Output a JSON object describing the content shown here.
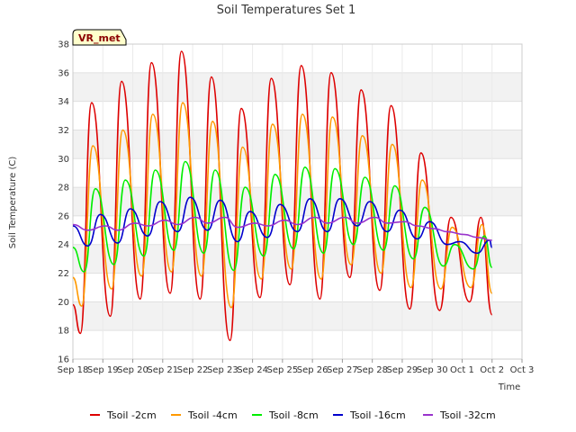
{
  "chart_data": {
    "type": "line",
    "title": "Soil Temperatures Set 1",
    "xlabel": "Time",
    "ylabel": "Soil Temperature (C)",
    "badge": "VR_met",
    "ylim": [
      16,
      38
    ],
    "yticks": [
      16,
      18,
      20,
      22,
      24,
      26,
      28,
      30,
      32,
      34,
      36,
      38
    ],
    "xlim": [
      "2018-09-18",
      "2018-10-03"
    ],
    "xticks": [
      "Sep 18",
      "Sep 19",
      "Sep 20",
      "Sep 21",
      "Sep 22",
      "Sep 23",
      "Sep 24",
      "Sep 25",
      "Sep 26",
      "Sep 27",
      "Sep 28",
      "Sep 29",
      "Sep 30",
      "Oct 1",
      "Oct 2",
      "Oct 3"
    ],
    "grid": true,
    "legend_position": "bottom",
    "series_note_x": "x values are dates (Sep 18 ... Oct 2) with daily minimum and maximum readings",
    "series": [
      {
        "name": "Tsoil -2cm",
        "color": "#dd0000",
        "points": [
          [
            "2018-09-18 00:00",
            19.8
          ],
          [
            "2018-09-18 06:00",
            17.8
          ],
          [
            "2018-09-18 15:00",
            33.9
          ],
          [
            "2018-09-19 06:00",
            19.0
          ],
          [
            "2018-09-19 15:00",
            35.4
          ],
          [
            "2018-09-20 06:00",
            20.2
          ],
          [
            "2018-09-20 15:00",
            36.7
          ],
          [
            "2018-09-21 06:00",
            20.6
          ],
          [
            "2018-09-21 15:00",
            37.5
          ],
          [
            "2018-09-22 06:00",
            20.2
          ],
          [
            "2018-09-22 15:00",
            35.7
          ],
          [
            "2018-09-23 06:00",
            17.3
          ],
          [
            "2018-09-23 15:00",
            33.5
          ],
          [
            "2018-09-24 06:00",
            20.3
          ],
          [
            "2018-09-24 15:00",
            35.6
          ],
          [
            "2018-09-25 06:00",
            21.2
          ],
          [
            "2018-09-25 15:00",
            36.5
          ],
          [
            "2018-09-26 06:00",
            20.2
          ],
          [
            "2018-09-26 15:00",
            36.0
          ],
          [
            "2018-09-27 06:00",
            21.7
          ],
          [
            "2018-09-27 15:00",
            34.8
          ],
          [
            "2018-09-28 06:00",
            20.8
          ],
          [
            "2018-09-28 15:00",
            33.7
          ],
          [
            "2018-09-29 06:00",
            19.5
          ],
          [
            "2018-09-29 15:00",
            30.4
          ],
          [
            "2018-09-30 06:00",
            19.4
          ],
          [
            "2018-09-30 15:00",
            25.9
          ],
          [
            "2018-10-01 06:00",
            20.0
          ],
          [
            "2018-10-01 15:00",
            25.9
          ],
          [
            "2018-10-02 00:00",
            19.1
          ]
        ]
      },
      {
        "name": "Tsoil -4cm",
        "color": "#ff9900",
        "points": [
          [
            "2018-09-18 00:00",
            21.7
          ],
          [
            "2018-09-18 07:00",
            19.7
          ],
          [
            "2018-09-18 16:00",
            30.9
          ],
          [
            "2018-09-19 07:00",
            20.9
          ],
          [
            "2018-09-19 16:00",
            32.0
          ],
          [
            "2018-09-20 07:00",
            21.8
          ],
          [
            "2018-09-20 16:00",
            33.1
          ],
          [
            "2018-09-21 07:00",
            22.1
          ],
          [
            "2018-09-21 16:00",
            33.9
          ],
          [
            "2018-09-22 07:00",
            21.8
          ],
          [
            "2018-09-22 16:00",
            32.6
          ],
          [
            "2018-09-23 07:00",
            19.6
          ],
          [
            "2018-09-23 16:00",
            30.8
          ],
          [
            "2018-09-24 07:00",
            21.6
          ],
          [
            "2018-09-24 16:00",
            32.4
          ],
          [
            "2018-09-25 07:00",
            22.3
          ],
          [
            "2018-09-25 16:00",
            33.1
          ],
          [
            "2018-09-26 07:00",
            21.6
          ],
          [
            "2018-09-26 16:00",
            32.9
          ],
          [
            "2018-09-27 07:00",
            22.6
          ],
          [
            "2018-09-27 16:00",
            31.6
          ],
          [
            "2018-09-28 07:00",
            22.0
          ],
          [
            "2018-09-28 16:00",
            31.0
          ],
          [
            "2018-09-29 07:00",
            21.0
          ],
          [
            "2018-09-29 16:00",
            28.5
          ],
          [
            "2018-09-30 07:00",
            20.9
          ],
          [
            "2018-09-30 16:00",
            25.2
          ],
          [
            "2018-10-01 07:00",
            21.0
          ],
          [
            "2018-10-01 16:00",
            25.4
          ],
          [
            "2018-10-02 00:00",
            20.6
          ]
        ]
      },
      {
        "name": "Tsoil -8cm",
        "color": "#00ee00",
        "points": [
          [
            "2018-09-18 00:00",
            23.8
          ],
          [
            "2018-09-18 09:00",
            22.1
          ],
          [
            "2018-09-18 18:00",
            27.9
          ],
          [
            "2018-09-19 09:00",
            22.6
          ],
          [
            "2018-09-19 18:00",
            28.5
          ],
          [
            "2018-09-20 09:00",
            23.2
          ],
          [
            "2018-09-20 18:00",
            29.2
          ],
          [
            "2018-09-21 09:00",
            23.6
          ],
          [
            "2018-09-21 18:00",
            29.8
          ],
          [
            "2018-09-22 09:00",
            23.4
          ],
          [
            "2018-09-22 18:00",
            29.2
          ],
          [
            "2018-09-23 09:00",
            22.2
          ],
          [
            "2018-09-23 18:00",
            28.0
          ],
          [
            "2018-09-24 09:00",
            23.2
          ],
          [
            "2018-09-24 18:00",
            28.9
          ],
          [
            "2018-09-25 09:00",
            23.7
          ],
          [
            "2018-09-25 18:00",
            29.4
          ],
          [
            "2018-09-26 09:00",
            23.4
          ],
          [
            "2018-09-26 18:00",
            29.3
          ],
          [
            "2018-09-27 09:00",
            24.0
          ],
          [
            "2018-09-27 18:00",
            28.7
          ],
          [
            "2018-09-28 09:00",
            23.6
          ],
          [
            "2018-09-28 18:00",
            28.1
          ],
          [
            "2018-09-29 09:00",
            23.0
          ],
          [
            "2018-09-29 18:00",
            26.6
          ],
          [
            "2018-09-30 09:00",
            22.5
          ],
          [
            "2018-09-30 18:00",
            24.0
          ],
          [
            "2018-10-01 09:00",
            22.3
          ],
          [
            "2018-10-01 18:00",
            24.6
          ],
          [
            "2018-10-02 00:00",
            22.4
          ]
        ]
      },
      {
        "name": "Tsoil -16cm",
        "color": "#0000cc",
        "points": [
          [
            "2018-09-18 00:00",
            25.3
          ],
          [
            "2018-09-18 12:00",
            23.9
          ],
          [
            "2018-09-18 22:00",
            26.1
          ],
          [
            "2018-09-19 12:00",
            24.1
          ],
          [
            "2018-09-19 22:00",
            26.5
          ],
          [
            "2018-09-20 12:00",
            24.6
          ],
          [
            "2018-09-20 22:00",
            27.0
          ],
          [
            "2018-09-21 12:00",
            24.9
          ],
          [
            "2018-09-21 22:00",
            27.3
          ],
          [
            "2018-09-22 12:00",
            25.0
          ],
          [
            "2018-09-22 22:00",
            27.1
          ],
          [
            "2018-09-23 12:00",
            24.2
          ],
          [
            "2018-09-23 22:00",
            26.3
          ],
          [
            "2018-09-24 12:00",
            24.5
          ],
          [
            "2018-09-24 22:00",
            26.8
          ],
          [
            "2018-09-25 12:00",
            24.9
          ],
          [
            "2018-09-25 22:00",
            27.2
          ],
          [
            "2018-09-26 12:00",
            24.9
          ],
          [
            "2018-09-26 22:00",
            27.2
          ],
          [
            "2018-09-27 12:00",
            25.3
          ],
          [
            "2018-09-27 22:00",
            27.0
          ],
          [
            "2018-09-28 12:00",
            24.9
          ],
          [
            "2018-09-28 22:00",
            26.4
          ],
          [
            "2018-09-29 12:00",
            24.4
          ],
          [
            "2018-09-29 22:00",
            25.6
          ],
          [
            "2018-09-30 12:00",
            24.0
          ],
          [
            "2018-09-30 22:00",
            24.2
          ],
          [
            "2018-10-01 12:00",
            23.4
          ],
          [
            "2018-10-01 22:00",
            24.3
          ],
          [
            "2018-10-02 00:00",
            23.8
          ]
        ]
      },
      {
        "name": "Tsoil -32cm",
        "color": "#9933cc",
        "points": [
          [
            "2018-09-18 00:00",
            25.4
          ],
          [
            "2018-09-18 12:00",
            25.0
          ],
          [
            "2018-09-19 02:00",
            25.3
          ],
          [
            "2018-09-19 12:00",
            25.0
          ],
          [
            "2018-09-20 02:00",
            25.5
          ],
          [
            "2018-09-20 12:00",
            25.3
          ],
          [
            "2018-09-21 02:00",
            25.7
          ],
          [
            "2018-09-21 12:00",
            25.4
          ],
          [
            "2018-09-22 02:00",
            25.9
          ],
          [
            "2018-09-22 12:00",
            25.5
          ],
          [
            "2018-09-23 02:00",
            25.9
          ],
          [
            "2018-09-23 12:00",
            25.2
          ],
          [
            "2018-09-24 02:00",
            25.5
          ],
          [
            "2018-09-24 12:00",
            25.3
          ],
          [
            "2018-09-25 02:00",
            25.7
          ],
          [
            "2018-09-25 12:00",
            25.4
          ],
          [
            "2018-09-26 02:00",
            25.9
          ],
          [
            "2018-09-26 12:00",
            25.5
          ],
          [
            "2018-09-27 02:00",
            25.9
          ],
          [
            "2018-09-27 12:00",
            25.5
          ],
          [
            "2018-09-28 02:00",
            25.9
          ],
          [
            "2018-09-28 12:00",
            25.5
          ],
          [
            "2018-09-29 02:00",
            25.6
          ],
          [
            "2018-09-29 12:00",
            25.3
          ],
          [
            "2018-09-30 02:00",
            25.1
          ],
          [
            "2018-09-30 12:00",
            24.9
          ],
          [
            "2018-10-01 02:00",
            24.7
          ],
          [
            "2018-10-01 12:00",
            24.5
          ],
          [
            "2018-10-02 00:00",
            24.3
          ]
        ]
      }
    ]
  }
}
